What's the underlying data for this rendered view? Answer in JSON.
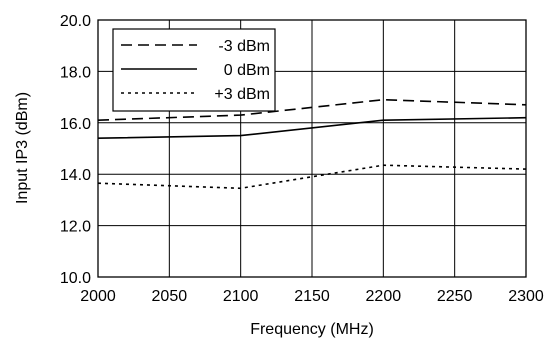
{
  "chart_data": {
    "type": "line",
    "xlabel": "Frequency (MHz)",
    "ylabel": "Input IP3 (dBm)",
    "xlim": [
      2000,
      2300
    ],
    "ylim": [
      10.0,
      20.0
    ],
    "x_ticks": [
      "2000",
      "2050",
      "2100",
      "2150",
      "2200",
      "2250",
      "2300"
    ],
    "y_ticks": [
      "10.0",
      "12.0",
      "14.0",
      "16.0",
      "18.0",
      "20.0"
    ],
    "grid": true,
    "legend_position": "top-left",
    "series": [
      {
        "name": "-3 dBm",
        "style": "dashed",
        "color": "#000000",
        "x": [
          2000,
          2100,
          2200,
          2300
        ],
        "y": [
          16.1,
          16.3,
          16.9,
          16.7
        ]
      },
      {
        "name": "0 dBm",
        "style": "solid",
        "color": "#000000",
        "x": [
          2000,
          2100,
          2200,
          2300
        ],
        "y": [
          15.4,
          15.5,
          16.1,
          16.2
        ]
      },
      {
        "name": "+3 dBm",
        "style": "dotted",
        "color": "#000000",
        "x": [
          2000,
          2100,
          2200,
          2300
        ],
        "y": [
          13.65,
          13.45,
          14.35,
          14.2
        ]
      }
    ]
  }
}
